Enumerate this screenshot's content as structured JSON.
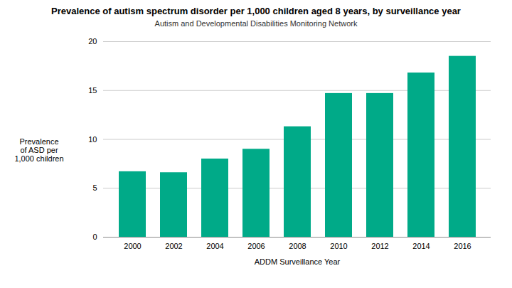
{
  "chart_data": {
    "type": "bar",
    "title": "Prevalence of autism spectrum disorder per 1,000 children aged 8 years, by surveillance year",
    "subtitle": "Autism and Developmental Disabilities Monitoring Network",
    "xlabel": "ADDM Surveillance Year",
    "ylabel": "Prevalence\nof ASD per\n1,000 children",
    "categories": [
      "2000",
      "2002",
      "2004",
      "2006",
      "2008",
      "2010",
      "2012",
      "2014",
      "2016"
    ],
    "values": [
      6.7,
      6.6,
      8.0,
      9.0,
      11.3,
      14.7,
      14.7,
      16.8,
      18.5
    ],
    "color": "#00AA88",
    "ylim": [
      0,
      20
    ],
    "yticks": [
      0,
      5,
      10,
      15,
      20
    ],
    "grid": true
  }
}
